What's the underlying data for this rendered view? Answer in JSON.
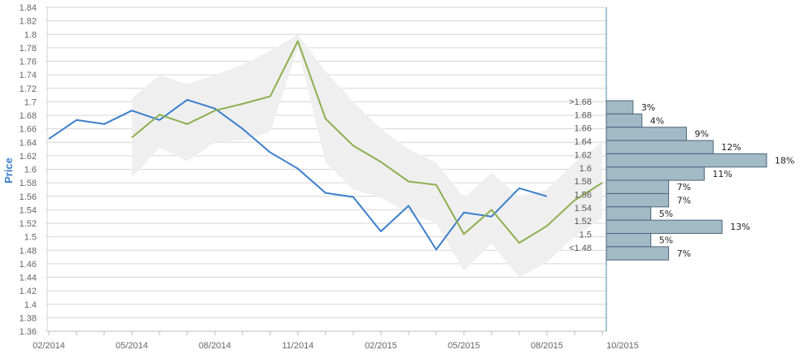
{
  "chart_data": {
    "type": "line",
    "xlabel": "",
    "ylabel": "Price",
    "ylim": [
      1.36,
      1.84
    ],
    "y_ticks": [
      "1.36",
      "1.38",
      "1.4",
      "1.42",
      "1.44",
      "1.46",
      "1.48",
      "1.5",
      "1.52",
      "1.54",
      "1.56",
      "1.58",
      "1.6",
      "1.62",
      "1.64",
      "1.66",
      "1.68",
      "1.7",
      "1.72",
      "1.74",
      "1.76",
      "1.78",
      "1.8",
      "1.82",
      "1.84"
    ],
    "x_ticks": [
      "02/2014",
      "05/2014",
      "08/2014",
      "11/2014",
      "02/2015",
      "05/2015",
      "08/2015",
      "10/2015"
    ],
    "grid": true,
    "colors": {
      "actual": "#3a7ecb",
      "forecast": "#8aaf4e",
      "band": "#efefef",
      "bars": "#a2b9c6",
      "bar_border": "#4d6577",
      "axis": "#4a86a8",
      "grid": "#d6d6d6"
    },
    "series": [
      {
        "key": "actual",
        "x": [
          "2014-02",
          "2014-03",
          "2014-04",
          "2014-05",
          "2014-06",
          "2014-07",
          "2014-08",
          "2014-09",
          "2014-10",
          "2014-11",
          "2014-12",
          "2015-01",
          "2015-02",
          "2015-03",
          "2015-04",
          "2015-05",
          "2015-06",
          "2015-07",
          "2015-08"
        ],
        "y": [
          1.645,
          1.673,
          1.667,
          1.687,
          1.673,
          1.703,
          1.69,
          1.66,
          1.625,
          1.601,
          1.565,
          1.559,
          1.508,
          1.546,
          1.481,
          1.536,
          1.53,
          1.572,
          1.56
        ]
      },
      {
        "key": "forecast",
        "x": [
          "2014-05",
          "2014-06",
          "2014-07",
          "2014-08",
          "2014-09",
          "2014-10",
          "2014-11",
          "2014-12",
          "2015-01",
          "2015-02",
          "2015-03",
          "2015-04",
          "2015-05",
          "2015-06",
          "2015-07",
          "2015-08",
          "2015-09",
          "2015-10"
        ],
        "y": [
          1.647,
          1.681,
          1.667,
          1.687,
          1.697,
          1.708,
          1.79,
          1.675,
          1.635,
          1.611,
          1.582,
          1.577,
          1.504,
          1.54,
          1.491,
          1.516,
          1.554,
          1.58
        ]
      }
    ],
    "band": {
      "x": [
        "2014-05",
        "2014-06",
        "2014-07",
        "2014-08",
        "2014-09",
        "2014-10",
        "2014-11",
        "2014-12",
        "2015-01",
        "2015-02",
        "2015-03",
        "2015-04",
        "2015-05",
        "2015-06",
        "2015-07",
        "2015-08",
        "2015-09",
        "2015-10"
      ],
      "upper": [
        1.705,
        1.74,
        1.726,
        1.74,
        1.755,
        1.775,
        1.8,
        1.745,
        1.7,
        1.66,
        1.63,
        1.61,
        1.558,
        1.595,
        1.56,
        1.57,
        1.61,
        1.64
      ],
      "lower": [
        1.588,
        1.632,
        1.612,
        1.64,
        1.643,
        1.655,
        1.78,
        1.61,
        1.57,
        1.558,
        1.535,
        1.52,
        1.45,
        1.49,
        1.44,
        1.462,
        1.5,
        1.528
      ]
    },
    "distribution": {
      "bins": [
        {
          "label": ">1.68",
          "value": 3,
          "text": "3%"
        },
        {
          "label": "1.68",
          "value": 4,
          "text": "4%"
        },
        {
          "label": "1.66",
          "value": 9,
          "text": "9%"
        },
        {
          "label": "1.64",
          "value": 12,
          "text": "12%"
        },
        {
          "label": "1.62",
          "value": 18,
          "text": "18%"
        },
        {
          "label": "1.6",
          "value": 11,
          "text": "11%"
        },
        {
          "label": "1.58",
          "value": 7,
          "text": "7%"
        },
        {
          "label": "1.56",
          "value": 7,
          "text": "7%"
        },
        {
          "label": "1.54",
          "value": 5,
          "text": "5%"
        },
        {
          "label": "1.52",
          "value": 13,
          "text": "13%"
        },
        {
          "label": "1.5",
          "value": 5,
          "text": "5%"
        },
        {
          "label": "<1.48",
          "value": 7,
          "text": "7%"
        }
      ]
    }
  }
}
